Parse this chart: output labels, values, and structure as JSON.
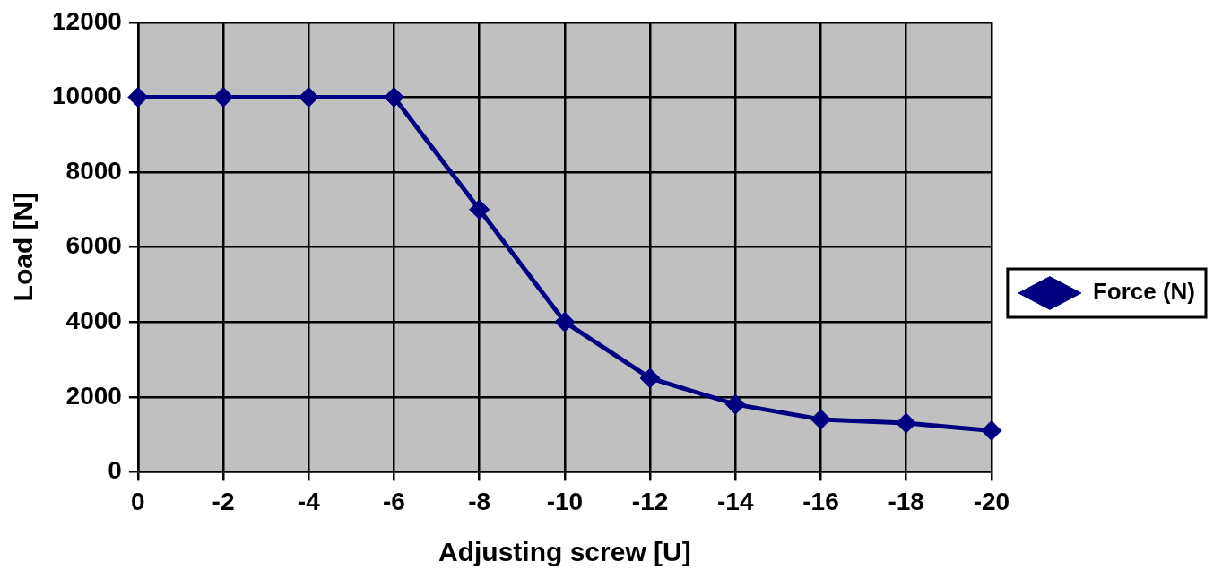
{
  "chart_data": {
    "type": "line",
    "xlabel": "Adjusting screw [U]",
    "ylabel": "Load [N]",
    "categories": [
      "0",
      "-2",
      "-4",
      "-6",
      "-8",
      "-10",
      "-12",
      "-14",
      "-16",
      "-18",
      "-20"
    ],
    "series": [
      {
        "name": "Force (N)",
        "color": "#000080",
        "values": [
          10000,
          10000,
          10000,
          10000,
          7000,
          4000,
          2500,
          1800,
          1400,
          1300,
          1100
        ]
      }
    ],
    "ylim": [
      0,
      12000
    ],
    "yticks": [
      0,
      2000,
      4000,
      6000,
      8000,
      10000,
      12000
    ],
    "grid": true,
    "legend": "right",
    "marker": "diamond",
    "line_style": "solid"
  }
}
